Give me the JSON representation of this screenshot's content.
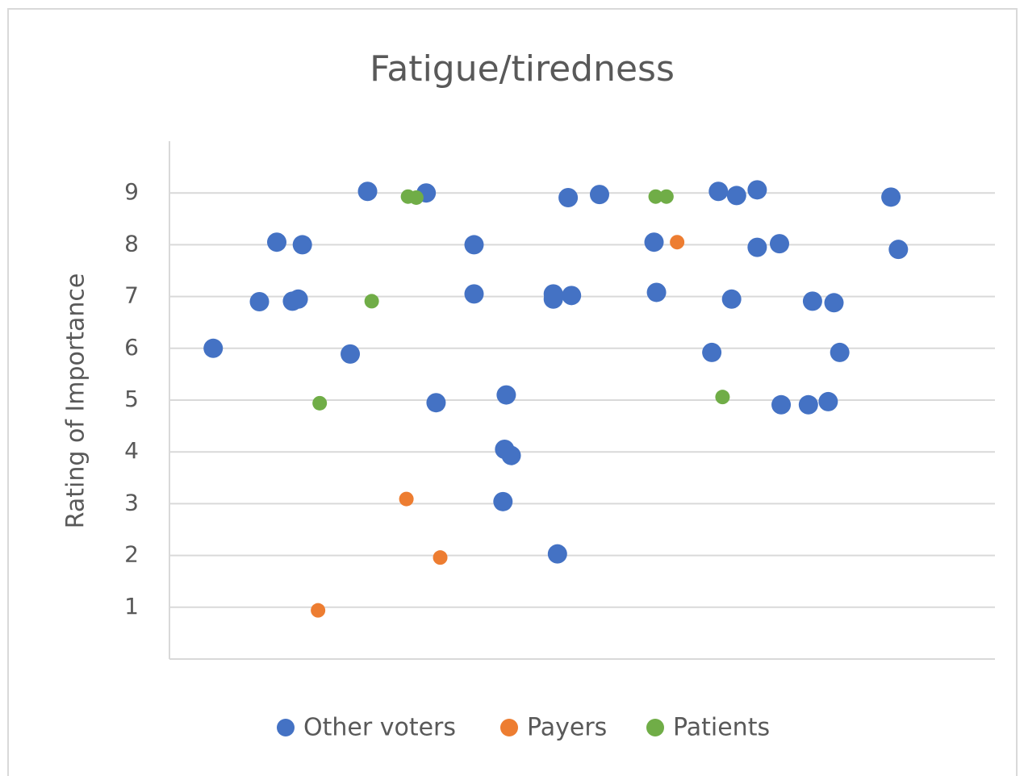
{
  "chart_data": {
    "type": "scatter",
    "title": "Fatigue/tiredness",
    "y_label": "Rating of Importance",
    "xlim": [
      0,
      100
    ],
    "ylim": [
      0,
      10
    ],
    "yticks": [
      1,
      2,
      3,
      4,
      5,
      6,
      7,
      8,
      9
    ],
    "grid": true,
    "legend": "bottom",
    "series": [
      {
        "name": "Other voters",
        "color": "#4472c4",
        "x": [
          5.3,
          10.9,
          13.0,
          16.1,
          14.9,
          15.6,
          21.9,
          24.0,
          31.1,
          32.3,
          36.9,
          36.9,
          40.8,
          40.6,
          41.4,
          40.4,
          46.5,
          46.5,
          48.7,
          47.0,
          48.3,
          52.1,
          58.7,
          59.0,
          65.7,
          66.5,
          68.7,
          71.2,
          68.1,
          71.2,
          73.9,
          74.1,
          77.4,
          79.8,
          77.9,
          80.5,
          81.2,
          87.4,
          88.3
        ],
        "values": [
          6.0,
          6.9,
          8.05,
          8.0,
          6.91,
          6.95,
          5.89,
          9.03,
          9.0,
          4.95,
          8.0,
          7.05,
          5.1,
          4.05,
          3.93,
          3.04,
          7.05,
          6.95,
          7.02,
          2.03,
          8.91,
          8.97,
          8.05,
          7.08,
          5.92,
          9.03,
          8.95,
          9.06,
          6.95,
          7.95,
          8.02,
          4.91,
          4.91,
          4.97,
          6.91,
          6.88,
          5.92,
          8.92,
          7.91
        ]
      },
      {
        "name": "Payers",
        "color": "#ed7d31",
        "x": [
          18.0,
          28.7,
          32.8,
          61.5
        ],
        "values": [
          0.94,
          3.09,
          1.96,
          8.05
        ]
      },
      {
        "name": "Patients",
        "color": "#70ad47",
        "x": [
          18.2,
          24.5,
          28.9,
          29.9,
          58.9,
          60.2,
          67.0
        ],
        "values": [
          4.94,
          6.91,
          8.93,
          8.91,
          8.93,
          8.93,
          5.06
        ]
      }
    ]
  }
}
